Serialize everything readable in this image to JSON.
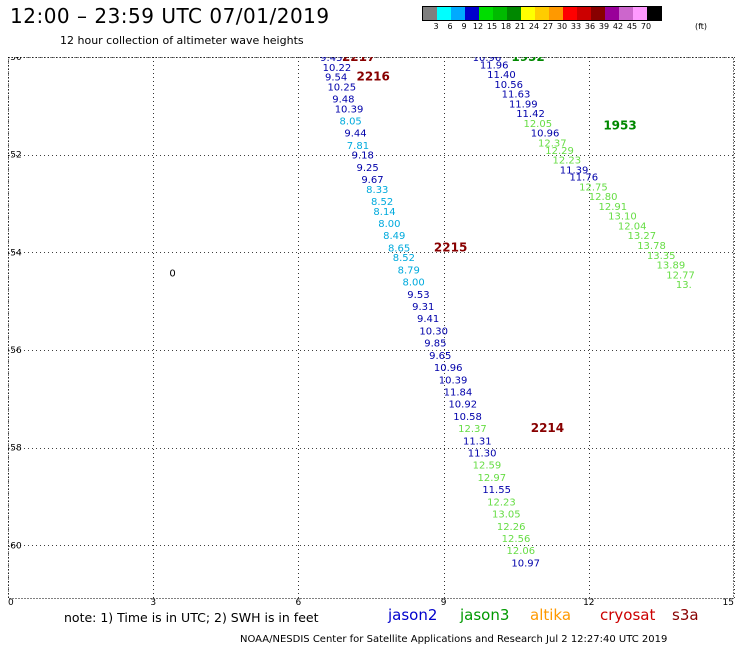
{
  "header": {
    "title": "12:00  – 23:59 UTC 07/01/2019",
    "subtitle": "12 hour collection of altimeter wave heights"
  },
  "legend": {
    "colors": [
      "#7f7f7f",
      "#00ffff",
      "#00aaff",
      "#0000cc",
      "#00dd00",
      "#00bb00",
      "#008800",
      "#ffff00",
      "#ffcc00",
      "#ff9900",
      "#ff0000",
      "#cc0000",
      "#880000",
      "#990099",
      "#cc66cc",
      "#ff99ff",
      "#000000"
    ],
    "labels": [
      "3",
      "6",
      "9",
      "12",
      "15",
      "18",
      "21",
      "24",
      "27",
      "30",
      "33",
      "36",
      "39",
      "42",
      "45",
      "70"
    ],
    "unit": "(ft)"
  },
  "axes": {
    "x_ticks": [
      "0",
      "3",
      "6",
      "9",
      "12",
      "15"
    ],
    "y_ticks": [
      "-50",
      "-52",
      "-54",
      "-56",
      "-58",
      "-60"
    ],
    "y_vals": [
      -50,
      -52,
      -54,
      -56,
      -58,
      -60
    ],
    "x_vals": [
      0,
      3,
      6,
      9,
      12,
      15
    ]
  },
  "map": {
    "contour_label": "0",
    "contour_lon": 3.4,
    "contour_lat": -54.5
  },
  "passes": [
    {
      "label": "2217",
      "color": "#880000",
      "lon": 6.9,
      "lat": -50.0
    },
    {
      "label": "2216",
      "color": "#880000",
      "lon": 7.2,
      "lat": -50.4
    },
    {
      "label": "2215",
      "color": "#880000",
      "lon": 8.8,
      "lat": -53.9
    },
    {
      "label": "2214",
      "color": "#880000",
      "lon": 10.8,
      "lat": -57.6
    },
    {
      "label": "1952",
      "color": "#008800",
      "lon": 10.4,
      "lat": -50.0
    },
    {
      "label": "1953",
      "color": "#008800",
      "lon": 12.3,
      "lat": -51.4
    }
  ],
  "observations": [
    {
      "v": "9.45",
      "c": "#0000aa",
      "lon": 6.45,
      "lat": -50.0
    },
    {
      "v": "10.22",
      "c": "#0000aa",
      "lon": 6.5,
      "lat": -50.2
    },
    {
      "v": "9.54",
      "c": "#0000aa",
      "lon": 6.55,
      "lat": -50.4
    },
    {
      "v": "10.25",
      "c": "#0000aa",
      "lon": 6.6,
      "lat": -50.6
    },
    {
      "v": "9.48",
      "c": "#0000aa",
      "lon": 6.7,
      "lat": -50.85
    },
    {
      "v": "10.39",
      "c": "#0000aa",
      "lon": 6.75,
      "lat": -51.05
    },
    {
      "v": "8.05",
      "c": "#00aadd",
      "lon": 6.85,
      "lat": -51.3
    },
    {
      "v": "9.44",
      "c": "#0000aa",
      "lon": 6.95,
      "lat": -51.55
    },
    {
      "v": "7.81",
      "c": "#00aadd",
      "lon": 7.0,
      "lat": -51.8
    },
    {
      "v": "9.18",
      "c": "#0000aa",
      "lon": 7.1,
      "lat": -52.0
    },
    {
      "v": "9.25",
      "c": "#0000aa",
      "lon": 7.2,
      "lat": -52.25
    },
    {
      "v": "9.67",
      "c": "#0000aa",
      "lon": 7.3,
      "lat": -52.5
    },
    {
      "v": "8.33",
      "c": "#00aadd",
      "lon": 7.4,
      "lat": -52.7
    },
    {
      "v": "8.52",
      "c": "#00aadd",
      "lon": 7.5,
      "lat": -52.95
    },
    {
      "v": "8.14",
      "c": "#00aadd",
      "lon": 7.55,
      "lat": -53.15
    },
    {
      "v": "8.00",
      "c": "#00aadd",
      "lon": 7.65,
      "lat": -53.4
    },
    {
      "v": "8.49",
      "c": "#00aadd",
      "lon": 7.75,
      "lat": -53.65
    },
    {
      "v": "8.65",
      "c": "#00aadd",
      "lon": 7.85,
      "lat": -53.9
    },
    {
      "v": "8.52",
      "c": "#00aadd",
      "lon": 7.95,
      "lat": -54.1
    },
    {
      "v": "8.79",
      "c": "#00aadd",
      "lon": 8.05,
      "lat": -54.35
    },
    {
      "v": "8.00",
      "c": "#00aadd",
      "lon": 8.15,
      "lat": -54.6
    },
    {
      "v": "9.53",
      "c": "#0000aa",
      "lon": 8.25,
      "lat": -54.85
    },
    {
      "v": "9.31",
      "c": "#0000aa",
      "lon": 8.35,
      "lat": -55.1
    },
    {
      "v": "9.41",
      "c": "#0000aa",
      "lon": 8.45,
      "lat": -55.35
    },
    {
      "v": "10.30",
      "c": "#0000aa",
      "lon": 8.5,
      "lat": -55.6
    },
    {
      "v": "9.85",
      "c": "#0000aa",
      "lon": 8.6,
      "lat": -55.85
    },
    {
      "v": "9.65",
      "c": "#0000aa",
      "lon": 8.7,
      "lat": -56.1
    },
    {
      "v": "10.96",
      "c": "#0000aa",
      "lon": 8.8,
      "lat": -56.35
    },
    {
      "v": "10.39",
      "c": "#0000aa",
      "lon": 8.9,
      "lat": -56.6
    },
    {
      "v": "11.84",
      "c": "#0000aa",
      "lon": 9.0,
      "lat": -56.85
    },
    {
      "v": "10.92",
      "c": "#0000aa",
      "lon": 9.1,
      "lat": -57.1
    },
    {
      "v": "10.58",
      "c": "#0000aa",
      "lon": 9.2,
      "lat": -57.35
    },
    {
      "v": "12.37",
      "c": "#66dd44",
      "lon": 9.3,
      "lat": -57.6
    },
    {
      "v": "11.31",
      "c": "#0000aa",
      "lon": 9.4,
      "lat": -57.85
    },
    {
      "v": "11.30",
      "c": "#0000aa",
      "lon": 9.5,
      "lat": -58.1
    },
    {
      "v": "12.59",
      "c": "#66dd44",
      "lon": 9.6,
      "lat": -58.35
    },
    {
      "v": "12.97",
      "c": "#66dd44",
      "lon": 9.7,
      "lat": -58.6
    },
    {
      "v": "11.55",
      "c": "#0000aa",
      "lon": 9.8,
      "lat": -58.85
    },
    {
      "v": "12.23",
      "c": "#66dd44",
      "lon": 9.9,
      "lat": -59.1
    },
    {
      "v": "13.05",
      "c": "#66dd44",
      "lon": 10.0,
      "lat": -59.35
    },
    {
      "v": "12.26",
      "c": "#66dd44",
      "lon": 10.1,
      "lat": -59.6
    },
    {
      "v": "12.56",
      "c": "#66dd44",
      "lon": 10.2,
      "lat": -59.85
    },
    {
      "v": "12.06",
      "c": "#66dd44",
      "lon": 10.3,
      "lat": -60.1
    },
    {
      "v": "10.97",
      "c": "#0000aa",
      "lon": 10.4,
      "lat": -60.35
    },
    {
      "v": "10.96",
      "c": "#0000aa",
      "lon": 9.6,
      "lat": -50.0
    },
    {
      "v": "11.96",
      "c": "#0000aa",
      "lon": 9.75,
      "lat": -50.15
    },
    {
      "v": "11.40",
      "c": "#0000aa",
      "lon": 9.9,
      "lat": -50.35
    },
    {
      "v": "10.56",
      "c": "#0000aa",
      "lon": 10.05,
      "lat": -50.55
    },
    {
      "v": "11.63",
      "c": "#0000aa",
      "lon": 10.2,
      "lat": -50.75
    },
    {
      "v": "11.99",
      "c": "#0000aa",
      "lon": 10.35,
      "lat": -50.95
    },
    {
      "v": "11.42",
      "c": "#0000aa",
      "lon": 10.5,
      "lat": -51.15
    },
    {
      "v": "12.05",
      "c": "#66dd44",
      "lon": 10.65,
      "lat": -51.35
    },
    {
      "v": "10.96",
      "c": "#0000aa",
      "lon": 10.8,
      "lat": -51.55
    },
    {
      "v": "12.37",
      "c": "#66dd44",
      "lon": 10.95,
      "lat": -51.75
    },
    {
      "v": "12.29",
      "c": "#66dd44",
      "lon": 11.1,
      "lat": -51.9
    },
    {
      "v": "12.23",
      "c": "#66dd44",
      "lon": 11.25,
      "lat": -52.1
    },
    {
      "v": "11.39",
      "c": "#0000aa",
      "lon": 11.4,
      "lat": -52.3
    },
    {
      "v": "11.76",
      "c": "#0000aa",
      "lon": 11.6,
      "lat": -52.45
    },
    {
      "v": "12.75",
      "c": "#66dd44",
      "lon": 11.8,
      "lat": -52.65
    },
    {
      "v": "12.80",
      "c": "#66dd44",
      "lon": 12.0,
      "lat": -52.85
    },
    {
      "v": "12.91",
      "c": "#66dd44",
      "lon": 12.2,
      "lat": -53.05
    },
    {
      "v": "13.10",
      "c": "#66dd44",
      "lon": 12.4,
      "lat": -53.25
    },
    {
      "v": "12.04",
      "c": "#66dd44",
      "lon": 12.6,
      "lat": -53.45
    },
    {
      "v": "13.27",
      "c": "#66dd44",
      "lon": 12.8,
      "lat": -53.65
    },
    {
      "v": "13.78",
      "c": "#66dd44",
      "lon": 13.0,
      "lat": -53.85
    },
    {
      "v": "13.35",
      "c": "#66dd44",
      "lon": 13.2,
      "lat": -54.05
    },
    {
      "v": "13.89",
      "c": "#66dd44",
      "lon": 13.4,
      "lat": -54.25
    },
    {
      "v": "12.77",
      "c": "#66dd44",
      "lon": 13.6,
      "lat": -54.45
    },
    {
      "v": "13.",
      "c": "#66dd44",
      "lon": 13.8,
      "lat": -54.65
    }
  ],
  "bottom": {
    "note": "note:  1) Time is in UTC;  2) SWH is in feet",
    "missions": [
      {
        "name": "jason2",
        "color": "#0000cc"
      },
      {
        "name": "jason3",
        "color": "#009900"
      },
      {
        "name": "altika",
        "color": "#ff9900"
      },
      {
        "name": "cryosat",
        "color": "#cc0000"
      },
      {
        "name": "s3a",
        "color": "#880000"
      }
    ],
    "footer": "NOAA/NESDIS Center for Satellite Applications and Research    Jul  2 12:27:40 UTC 2019"
  }
}
